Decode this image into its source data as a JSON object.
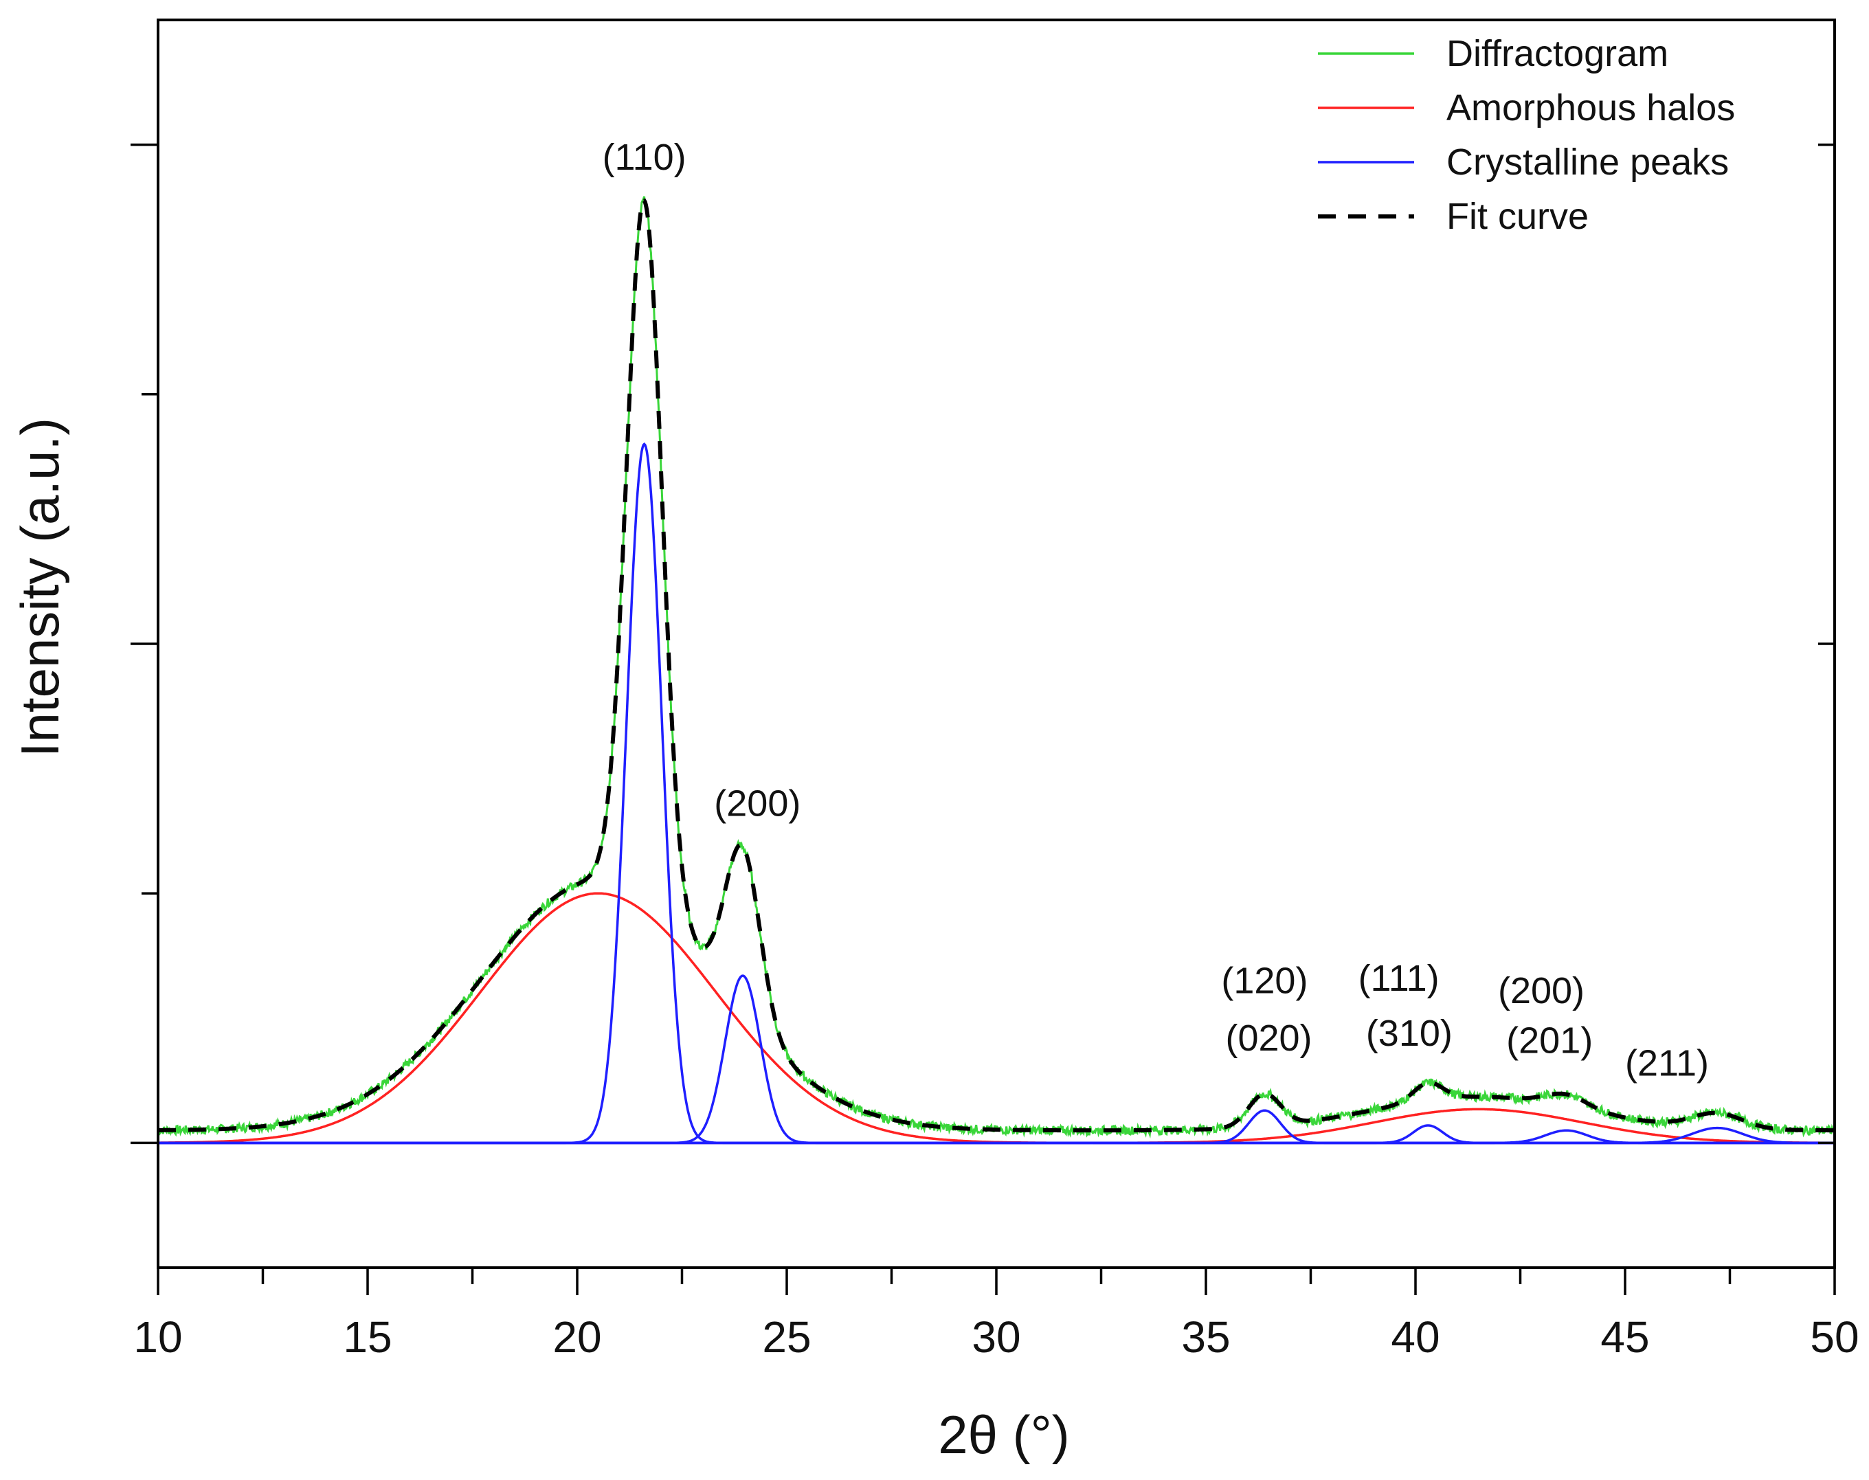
{
  "chart_data": {
    "type": "line",
    "title": "",
    "xlabel": "2θ (°)",
    "ylabel": "Intensity (a.u.)",
    "xlim": [
      10,
      50
    ],
    "ylim": [
      -0.5,
      4.5
    ],
    "x_ticks": [
      10,
      15,
      20,
      25,
      30,
      35,
      40,
      45,
      50
    ],
    "x_tick_labels": [
      "10",
      "15",
      "20",
      "25",
      "30",
      "35",
      "40",
      "45",
      "50"
    ],
    "x_minor_step": 2.5,
    "y_ticks": [
      0,
      1,
      2,
      3,
      4
    ],
    "y_tick_labels_shown": false,
    "grid": false,
    "legend_position": "top-right",
    "legend": [
      {
        "label": "Diffractogram",
        "color": "#3ad63a",
        "style": "solid"
      },
      {
        "label": "Amorphous halos",
        "color": "#ff2222",
        "style": "solid"
      },
      {
        "label": "Crystalline peaks",
        "color": "#1f1fff",
        "style": "solid"
      },
      {
        "label": "Fit curve",
        "color": "#000000",
        "style": "dashed"
      }
    ],
    "background_level": 0.05,
    "amorphous_halos": [
      {
        "center": 20.5,
        "height": 1.0,
        "sigma": 2.8
      },
      {
        "center": 41.5,
        "height": 0.135,
        "sigma": 2.5
      }
    ],
    "crystalline_peaks": [
      {
        "center": 21.6,
        "height": 2.8,
        "sigma": 0.42
      },
      {
        "center": 23.95,
        "height": 0.67,
        "sigma": 0.42
      },
      {
        "center": 36.4,
        "height": 0.13,
        "sigma": 0.38
      },
      {
        "center": 40.3,
        "height": 0.07,
        "sigma": 0.35
      },
      {
        "center": 43.6,
        "height": 0.05,
        "sigma": 0.5
      },
      {
        "center": 47.2,
        "height": 0.06,
        "sigma": 0.6
      }
    ],
    "annotations": [
      {
        "text": "(110)",
        "x": 21.6,
        "y": 3.9
      },
      {
        "text": "(200)",
        "x": 24.3,
        "y": 1.31
      },
      {
        "text": "(120)",
        "x": 36.4,
        "y": 0.6
      },
      {
        "text": "(020)",
        "x": 36.5,
        "y": 0.37
      },
      {
        "text": "(111)",
        "x": 39.6,
        "y": 0.61
      },
      {
        "text": "(310)",
        "x": 39.85,
        "y": 0.39
      },
      {
        "text": "(200)",
        "x": 43.0,
        "y": 0.56
      },
      {
        "text": "(201)",
        "x": 43.2,
        "y": 0.36
      },
      {
        "text": "(211)",
        "x": 46.0,
        "y": 0.27
      }
    ]
  }
}
